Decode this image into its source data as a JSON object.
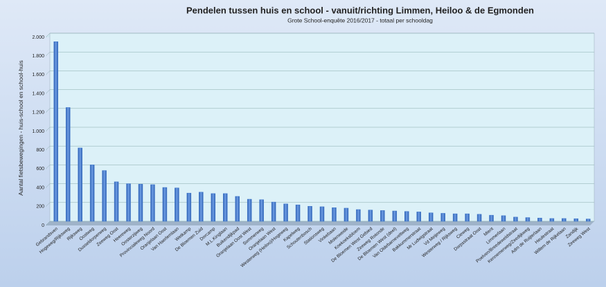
{
  "chart_data": {
    "type": "bar",
    "title": "Pendelen tussen huis en school - vanuit/richting Limmen, Heiloo & de Egmonden",
    "subtitle": "Grote School-enquête 2016/2017 - totaal per schooldag",
    "y_label": "Aantal fietsbewegingen - huis-school en school-huis",
    "categories": [
      "Gebrandsven",
      "Hogeweg/Rijksweg",
      "Rijksweg",
      "Oostweg",
      "Dusseldorperweg",
      "Zeeweg Oost",
      "Heereweg",
      "Oosterzijweg",
      "Provincialeweg Noord",
      "Oranjelaan Oost",
      "Van Haerlemlaan",
      "Wetkamp",
      "De Bloemen Zuid",
      "Dorcamp",
      "M.L.Kinglaan",
      "Buikendijkpad",
      "Oranjelaan Oost West",
      "Sommerweg",
      "Oranjelaan West",
      "Westerweg (Heiloo)/Hogeweg",
      "Kapelweg",
      "Schoutenbosch",
      "Stationsweg",
      "Vinkebaan",
      "Molenweide",
      "Koekoeksbloem",
      "De Bloemen West Gebied",
      "Zeeweg Rotonde",
      "De Bloemen West (deel)",
      "Van Oldebarneveltweg",
      "Bakkummerstraat",
      "Mr Ludwigstraat",
      "Vd Meijeweg",
      "Westerweg / Rijksweg",
      "Cieweg",
      "Dorpsstraat Oost",
      "Mient",
      "Limmerlaan",
      "Poelven/Breedeweldstraat",
      "Kennemerweg/Zeedijkweg",
      "Adm de Ruijterlaan",
      "Heulestraat",
      "Willem de Rijkelaan",
      "Zandijk",
      "Zeeweg West"
    ],
    "values": [
      1910,
      1210,
      780,
      600,
      540,
      420,
      400,
      395,
      390,
      360,
      355,
      300,
      310,
      295,
      295,
      265,
      235,
      230,
      205,
      185,
      175,
      160,
      155,
      145,
      140,
      125,
      120,
      115,
      110,
      105,
      100,
      90,
      85,
      80,
      80,
      75,
      65,
      60,
      45,
      40,
      35,
      30,
      30,
      28,
      25
    ],
    "color": "#3f78cc",
    "ylim": [
      0,
      2000
    ],
    "yticks": [
      0,
      200,
      400,
      600,
      800,
      {
        "value": 1000,
        "label": "1.000"
      },
      {
        "value": 1200,
        "label": "1.200"
      },
      {
        "value": 1400,
        "label": "1.400"
      },
      {
        "value": 1600,
        "label": "1.600"
      },
      {
        "value": 1800,
        "label": "1.800"
      },
      {
        "value": 2000,
        "label": "2.000"
      }
    ],
    "grid": true
  }
}
